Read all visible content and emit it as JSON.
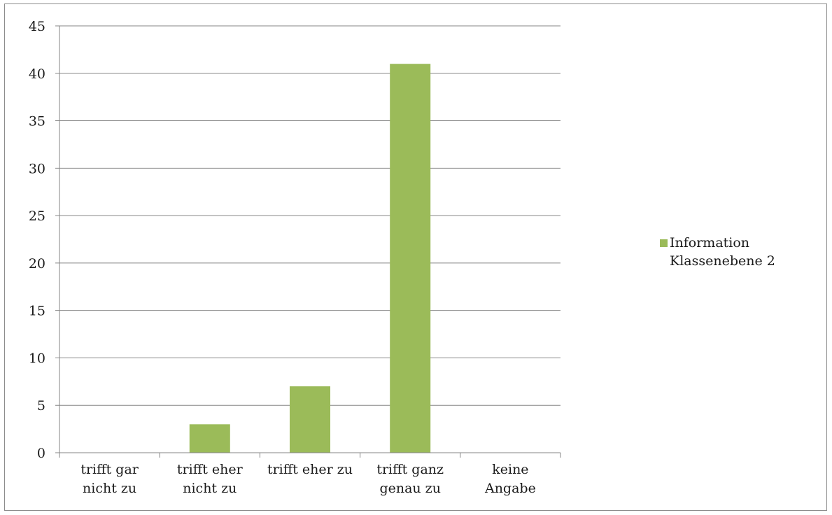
{
  "chart_data": {
    "type": "bar",
    "categories": [
      "trifft gar nicht zu",
      "trifft eher nicht zu",
      "trifft eher zu",
      "trifft ganz genau zu",
      "keine Angabe"
    ],
    "category_label_lines": [
      [
        "trifft gar",
        "nicht zu"
      ],
      [
        "trifft eher",
        "nicht zu"
      ],
      [
        "trifft eher zu"
      ],
      [
        "trifft ganz",
        "genau zu"
      ],
      [
        "keine",
        "Angabe"
      ]
    ],
    "series": [
      {
        "name": "Information Klassenebene 2",
        "name_lines": [
          "Information",
          "Klassenebene 2"
        ],
        "color": "#9bbb59",
        "values": [
          0,
          3,
          7,
          41,
          0
        ]
      }
    ],
    "title": "",
    "xlabel": "",
    "ylabel": "",
    "ylim": [
      0,
      45
    ],
    "yticks": [
      0,
      5,
      10,
      15,
      20,
      25,
      30,
      35,
      40,
      45
    ],
    "grid": true,
    "legend": "right",
    "gridline_color": "#868686",
    "axis_color": "#868686"
  }
}
